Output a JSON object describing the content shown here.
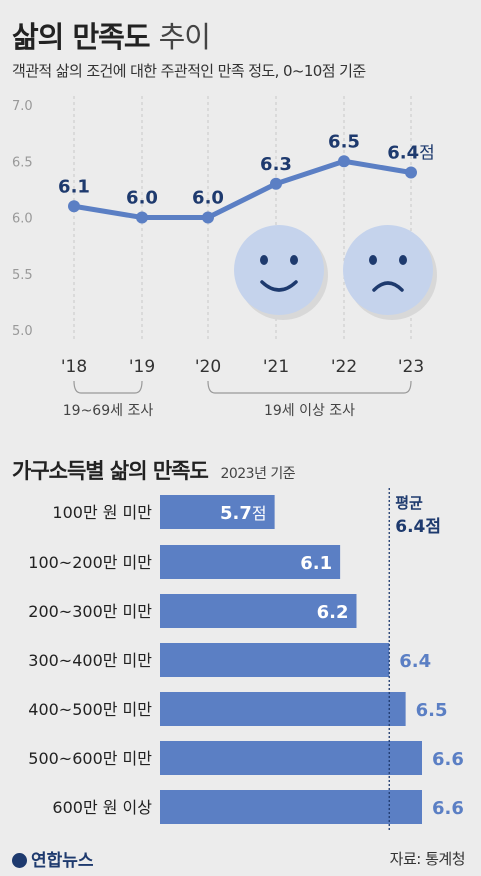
{
  "header": {
    "title_bold": "삶의 만족도",
    "title_light": "추이",
    "subtitle": "객관적 삶의 조건에 대한 주관적인 만족 정도, 0~10점 기준"
  },
  "colors": {
    "accent": "#5b7fc4",
    "dark": "#1e3a6e",
    "bar_label": "#ffffff"
  },
  "icons": [
    "smiley-face-icon",
    "sad-face-icon",
    "yonhap-logo-icon"
  ],
  "chart_data": [
    {
      "type": "line",
      "x": [
        "'18",
        "'19",
        "'20",
        "'21",
        "'22",
        "'23"
      ],
      "value_labels": [
        "6.1",
        "6.0",
        "6.0",
        "6.3",
        "6.5",
        "6.4점"
      ],
      "series": [
        {
          "values": [
            6.1,
            6.0,
            6.0,
            6.3,
            6.5,
            6.4
          ]
        }
      ],
      "y_ticks": [
        "7.0",
        "6.5",
        "6.0",
        "5.5",
        "5.0"
      ],
      "ylim": [
        5.0,
        7.0
      ],
      "grid": "vertical-dashed",
      "groups": [
        {
          "label": "19~69세 조사",
          "from": 0,
          "to": 1
        },
        {
          "label": "19세 이상 조사",
          "from": 2,
          "to": 5
        }
      ]
    },
    {
      "type": "bar",
      "orientation": "horizontal",
      "title_bold": "가구소득별 삶의 만족도",
      "title_year": "2023년 기준",
      "categories": [
        "100만 원 미만",
        "100~200만 미만",
        "200~300만 미만",
        "300~400만 미만",
        "400~500만 미만",
        "500~600만 미만",
        "600만 원 이상"
      ],
      "value_labels": [
        "5.7점",
        "6.1",
        "6.2",
        "6.4",
        "6.5",
        "6.6",
        "6.6"
      ],
      "values": [
        5.7,
        6.1,
        6.2,
        6.4,
        6.5,
        6.6,
        6.6
      ],
      "reference": {
        "label_line1": "평균",
        "label_line2": "6.4점",
        "value": 6.4
      }
    }
  ],
  "footer": {
    "logo": "연합뉴스",
    "source": "자료: 통계청"
  }
}
